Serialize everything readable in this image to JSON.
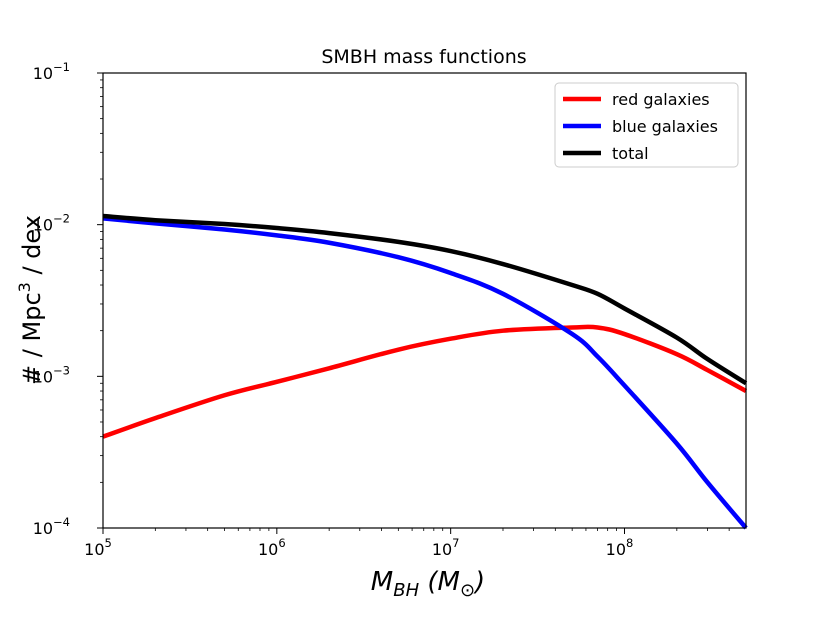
{
  "chart_data": {
    "type": "line",
    "title": "SMBH mass functions",
    "xlabel": "M_BH (M_⊙)",
    "ylabel": "# / Mpc³ / dex",
    "xscale": "log",
    "yscale": "log",
    "xlim": [
      100000,
      500000000
    ],
    "ylim": [
      0.0001,
      0.1
    ],
    "legend_position": "top-right",
    "x_ticks": [
      {
        "value": 100000,
        "base": "10",
        "exp": "5"
      },
      {
        "value": 1000000,
        "base": "10",
        "exp": "6"
      },
      {
        "value": 10000000,
        "base": "10",
        "exp": "7"
      },
      {
        "value": 100000000,
        "base": "10",
        "exp": "8"
      }
    ],
    "y_ticks": [
      {
        "value": 0.0001,
        "base": "10",
        "exp": "−4"
      },
      {
        "value": 0.001,
        "base": "10",
        "exp": "−3"
      },
      {
        "value": 0.01,
        "base": "10",
        "exp": "−2"
      },
      {
        "value": 0.1,
        "base": "10",
        "exp": "−1"
      }
    ],
    "x": [
      100000,
      200000,
      500000,
      1000000,
      2000000,
      5000000,
      10000000,
      20000000,
      50000000,
      70000000,
      100000000,
      200000000,
      300000000,
      500000000
    ],
    "series": [
      {
        "name": "red galaxies",
        "color": "#ff0000",
        "values": [
          0.0004,
          0.00053,
          0.00075,
          0.00092,
          0.00113,
          0.0015,
          0.00177,
          0.002,
          0.0021,
          0.0021,
          0.0019,
          0.0014,
          0.0011,
          0.0008
        ]
      },
      {
        "name": "blue galaxies",
        "color": "#0000ff",
        "values": [
          0.011,
          0.0102,
          0.0093,
          0.0085,
          0.0076,
          0.0061,
          0.0048,
          0.0035,
          0.0019,
          0.00135,
          0.00087,
          0.00036,
          0.0002,
          0.0001
        ]
      },
      {
        "name": "total",
        "color": "#000000",
        "values": [
          0.0114,
          0.0107,
          0.0101,
          0.0095,
          0.0088,
          0.0077,
          0.0067,
          0.0055,
          0.004,
          0.0035,
          0.0028,
          0.0018,
          0.0013,
          0.0009
        ]
      }
    ]
  }
}
